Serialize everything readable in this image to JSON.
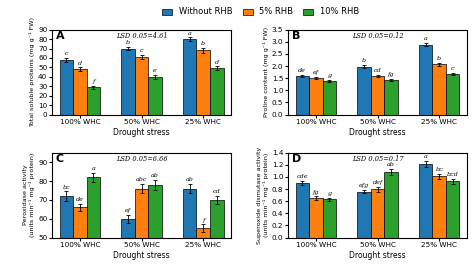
{
  "chart_data": [
    {
      "type": "bar",
      "title": "A",
      "categories": [
        "100% WHC",
        "50% WHC",
        "25% WHC"
      ],
      "xlabel": "Drought stress",
      "ylabel": "Total soluble proteins (mg g⁻¹ FW)",
      "annotations": [
        "LSD 0.05=4.61"
      ],
      "ylim": [
        0,
        90
      ],
      "yticks": [
        0,
        10,
        20,
        30,
        40,
        50,
        60,
        70,
        80,
        90
      ],
      "grid": false,
      "legend": "upper center",
      "series": [
        {
          "name": "Without RHB",
          "values": [
            58,
            70,
            80
          ],
          "errors": [
            2.0,
            2.0,
            2.0
          ],
          "letters": [
            "c",
            "b",
            "a"
          ]
        },
        {
          "name": "5% RHB",
          "values": [
            48,
            61,
            68
          ],
          "errors": [
            2.0,
            2.0,
            2.5
          ],
          "letters": [
            "d",
            "c",
            "b"
          ]
        },
        {
          "name": "10% RHB",
          "values": [
            29,
            40,
            49
          ],
          "errors": [
            1.5,
            1.8,
            2.0
          ],
          "letters": [
            "f",
            "e",
            "d"
          ]
        }
      ]
    },
    {
      "type": "bar",
      "title": "B",
      "categories": [
        "100% WHC",
        "50% WHC",
        "25% WHC"
      ],
      "xlabel": "Drought stress",
      "ylabel": "Proline content (mg g⁻¹ FW)",
      "annotations": [
        "LSD 0.05=0.12"
      ],
      "ylim": [
        0,
        3.5
      ],
      "yticks": [
        0.0,
        0.5,
        1.0,
        1.5,
        2.0,
        2.5,
        3.0,
        3.5
      ],
      "grid": false,
      "series": [
        {
          "name": "Without RHB",
          "values": [
            1.6,
            1.98,
            2.88
          ],
          "errors": [
            0.05,
            0.06,
            0.07
          ],
          "letters": [
            "de",
            "b",
            "a"
          ]
        },
        {
          "name": "5% RHB",
          "values": [
            1.5,
            1.6,
            2.08
          ],
          "errors": [
            0.05,
            0.05,
            0.06
          ],
          "letters": [
            "ef",
            "cd",
            "b"
          ]
        },
        {
          "name": "10% RHB",
          "values": [
            1.38,
            1.44,
            1.68
          ],
          "errors": [
            0.04,
            0.04,
            0.05
          ],
          "letters": [
            "g",
            "fg",
            "c"
          ]
        }
      ]
    },
    {
      "type": "bar",
      "title": "C",
      "categories": [
        "100% WHC",
        "50% WHC",
        "25% WHC"
      ],
      "xlabel": "Drought stress",
      "ylabel": "Peroxidase activity\n(units min⁻¹ mg⁻¹ protein)",
      "annotations": [
        "LSD 0.05=6.66"
      ],
      "ylim": [
        50,
        95
      ],
      "yticks": [
        50,
        60,
        70,
        80,
        90
      ],
      "grid": false,
      "series": [
        {
          "name": "Without RHB",
          "values": [
            72,
            60,
            76
          ],
          "errors": [
            2.5,
            2.0,
            2.5
          ],
          "letters": [
            "bc",
            "ef",
            "ab"
          ]
        },
        {
          "name": "5% RHB",
          "values": [
            66,
            76,
            55
          ],
          "errors": [
            2.0,
            2.5,
            2.0
          ],
          "letters": [
            "de",
            "abc",
            "f"
          ]
        },
        {
          "name": "10% RHB",
          "values": [
            82,
            78,
            70
          ],
          "errors": [
            2.5,
            2.5,
            2.0
          ],
          "letters": [
            "a",
            "ab",
            "cd"
          ]
        }
      ]
    },
    {
      "type": "bar",
      "title": "D",
      "categories": [
        "100% WHC",
        "50% WHC",
        "25% WHC"
      ],
      "xlabel": "Drought stress",
      "ylabel": "Superoxide dismutase activity\n(units min⁻¹ mg⁻¹ protein)",
      "annotations": [
        "LSD 0.05=0.17"
      ],
      "ylim": [
        0,
        1.4
      ],
      "yticks": [
        0.0,
        0.2,
        0.4,
        0.6,
        0.8,
        1.0,
        1.2,
        1.4
      ],
      "grid": false,
      "series": [
        {
          "name": "Without RHB",
          "values": [
            0.9,
            0.76,
            1.22
          ],
          "errors": [
            0.04,
            0.03,
            0.05
          ],
          "letters": [
            "cde",
            "efg",
            "a"
          ]
        },
        {
          "name": "5% RHB",
          "values": [
            0.65,
            0.8,
            1.01
          ],
          "errors": [
            0.03,
            0.04,
            0.04
          ],
          "letters": [
            "fg",
            "def",
            "bc"
          ]
        },
        {
          "name": "10% RHB",
          "values": [
            0.63,
            1.09,
            0.93
          ],
          "errors": [
            0.03,
            0.05,
            0.04
          ],
          "letters": [
            "g",
            "ab",
            "bcd"
          ]
        }
      ]
    }
  ]
}
